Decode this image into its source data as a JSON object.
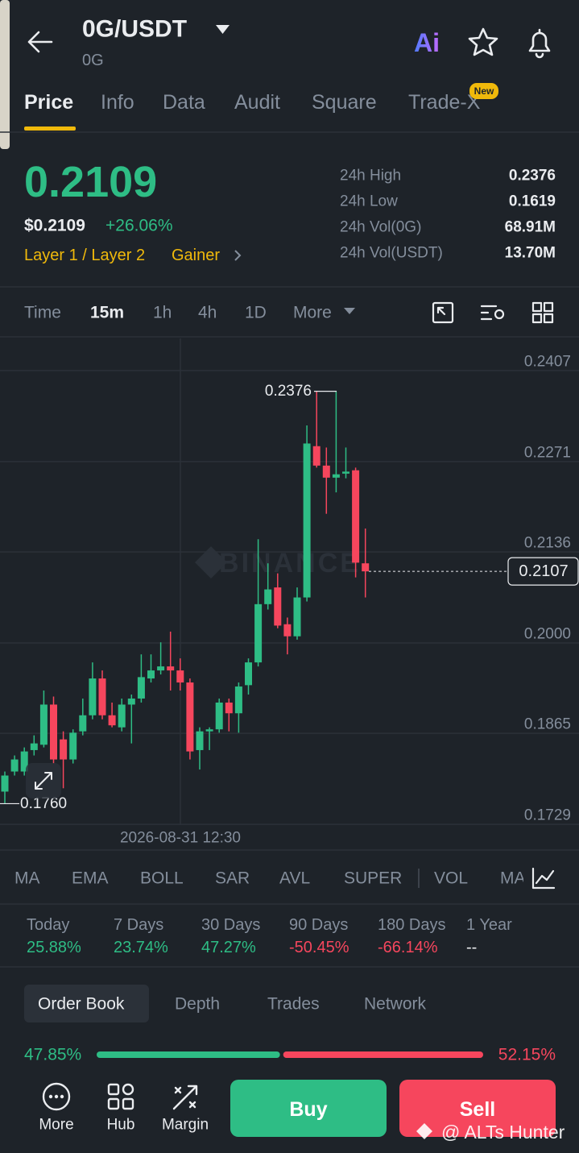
{
  "header": {
    "pair": "0G/USDT",
    "base": "0G",
    "ai_label": "Ai"
  },
  "tabs": [
    "Price",
    "Info",
    "Data",
    "Audit",
    "Square",
    "Trade-X"
  ],
  "tab_badge": "New",
  "price": {
    "last": "0.2109",
    "usd": "$0.2109",
    "change": "+26.06%",
    "tags": [
      "Layer 1 / Layer 2",
      "Gainer"
    ]
  },
  "stats": [
    {
      "label": "24h High",
      "value": "0.2376"
    },
    {
      "label": "24h Low",
      "value": "0.1619"
    },
    {
      "label": "24h Vol(0G)",
      "value": "68.91M"
    },
    {
      "label": "24h Vol(USDT)",
      "value": "13.70M"
    }
  ],
  "intervals": [
    "Time",
    "15m",
    "1h",
    "4h",
    "1D",
    "More"
  ],
  "chart_data": {
    "type": "candlestick",
    "watermark": "BINANCE",
    "xlabel": "2026-08-31 12:30",
    "ylim": [
      0.1728,
      0.2455
    ],
    "yticks": [
      0.2407,
      0.2271,
      0.2136,
      {
        "value": 0.2,
        "label": "0.2000"
      },
      0.1865,
      0.1729
    ],
    "grid": true,
    "up_color": "#2ebd85",
    "down_color": "#f6465d",
    "open": [
      0.1778,
      0.1808,
      0.1808,
      0.184,
      0.1848,
      0.1908,
      0.1856,
      0.1826,
      0.1868,
      0.1892,
      0.1947,
      0.1892,
      0.1874,
      0.1908,
      0.1917,
      0.1947,
      0.1959,
      0.1965,
      0.1959,
      0.1941,
      0.184,
      0.1868,
      0.1871,
      0.1911,
      0.1895,
      0.1937,
      0.1971,
      0.2058,
      0.2083,
      0.2028,
      0.201,
      0.2068,
      0.2294,
      0.2265,
      0.2247,
      0.2253,
      0.2258,
      0.2119
    ],
    "high": [
      0.1808,
      0.1832,
      0.1844,
      0.1862,
      0.1929,
      0.192,
      0.1868,
      0.1871,
      0.1917,
      0.1971,
      0.1959,
      0.1911,
      0.1917,
      0.1923,
      0.1983,
      0.1983,
      0.2001,
      0.2017,
      0.1977,
      0.1947,
      0.1874,
      0.1874,
      0.1917,
      0.1917,
      0.1941,
      0.1977,
      0.2155,
      0.2119,
      0.2104,
      0.2038,
      0.2083,
      0.2325,
      0.2376,
      0.2292,
      0.2376,
      0.2292,
      0.2262,
      0.2171
    ],
    "low": [
      0.176,
      0.1802,
      0.1802,
      0.1832,
      0.1844,
      0.182,
      0.1783,
      0.182,
      0.1862,
      0.1886,
      0.1886,
      0.1874,
      0.1868,
      0.185,
      0.1911,
      0.1941,
      0.1953,
      0.1929,
      0.1929,
      0.1826,
      0.1811,
      0.184,
      0.1866,
      0.1868,
      0.1866,
      0.1923,
      0.1965,
      0.205,
      0.2022,
      0.1983,
      0.2005,
      0.2062,
      0.2262,
      0.2193,
      0.2225,
      0.2246,
      0.2098,
      0.2068
    ],
    "close": [
      0.1802,
      0.1826,
      0.1838,
      0.185,
      0.1908,
      0.1826,
      0.1826,
      0.1866,
      0.1892,
      0.1947,
      0.1892,
      0.1877,
      0.1908,
      0.1917,
      0.1949,
      0.1959,
      0.1965,
      0.1959,
      0.1941,
      0.1838,
      0.1868,
      0.1871,
      0.1911,
      0.1895,
      0.1935,
      0.1971,
      0.2058,
      0.208,
      0.2026,
      0.201,
      0.2068,
      0.2298,
      0.2265,
      0.2247,
      0.2252,
      0.2256,
      0.212,
      0.2107
    ],
    "high_mark": 0.2376,
    "low_mark": {
      "value": 0.176,
      "label": "0.1760"
    },
    "last_price": 0.2107
  },
  "indicators": [
    "MA",
    "EMA",
    "BOLL",
    "SAR",
    "AVL",
    "SUPER",
    "VOL",
    "MA"
  ],
  "performance": [
    {
      "period": "Today",
      "change": "25.88%"
    },
    {
      "period": "7 Days",
      "change": "23.74%"
    },
    {
      "period": "30 Days",
      "change": "47.27%"
    },
    {
      "period": "90 Days",
      "change": "-50.45%"
    },
    {
      "period": "180 Days",
      "change": "-66.14%"
    },
    {
      "period": "1 Year",
      "change": "--"
    }
  ],
  "book_tabs": [
    "Order Book",
    "Depth",
    "Trades",
    "Network"
  ],
  "ratio": {
    "values": [
      47.85,
      52.15
    ],
    "value_labels": [
      "47.85%",
      "52.15%"
    ]
  },
  "actions": [
    "More",
    "Hub",
    "Margin"
  ],
  "buttons": [
    "Buy",
    "Sell"
  ],
  "watermark": "@ ALTs Hunter"
}
